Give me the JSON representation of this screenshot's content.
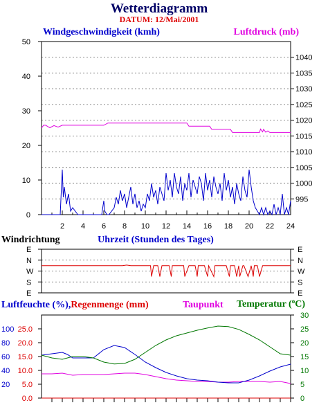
{
  "title": "Wetterdiagramm",
  "subtitle": "DATUM: 12/Mai/2001",
  "colors": {
    "wind": "#0000cc",
    "pressure": "#e000e0",
    "direction": "#dd0000",
    "humidity": "#0000cc",
    "rain": "#dd0000",
    "dewpoint": "#e000e0",
    "temperature": "#007700",
    "title": "#000066",
    "date": "#dd0000"
  },
  "chart_data": [
    {
      "type": "line",
      "left_axis_label": "Windgeschwindigkeit (kmh)",
      "right_axis_label": "Luftdruck (mb)",
      "xlabel": "Uhrzeit (Stunden des Tages)",
      "x_ticks": [
        2,
        4,
        6,
        8,
        10,
        12,
        14,
        16,
        18,
        20,
        22,
        24
      ],
      "xlim": [
        0,
        24
      ],
      "left_ylim": [
        0,
        50
      ],
      "left_ticks": [
        0,
        10,
        20,
        30,
        40,
        50
      ],
      "right_ylim": [
        990,
        1045
      ],
      "right_ticks": [
        995,
        1000,
        1005,
        1010,
        1015,
        1020,
        1025,
        1030,
        1035,
        1040
      ],
      "grid": true,
      "series": [
        {
          "name": "Windgeschwindigkeit (kmh)",
          "axis": "left",
          "x": [
            0,
            1.8,
            2.0,
            2.1,
            2.2,
            2.4,
            2.6,
            2.8,
            3.0,
            3.5,
            5.0,
            5.8,
            6.0,
            6.1,
            6.3,
            6.5,
            7.0,
            7.2,
            7.4,
            7.6,
            7.8,
            8.0,
            8.2,
            8.4,
            8.6,
            8.8,
            9.0,
            9.2,
            9.4,
            9.6,
            9.8,
            10.0,
            10.2,
            10.4,
            10.6,
            10.8,
            11.0,
            11.2,
            11.4,
            11.6,
            11.8,
            12.0,
            12.2,
            12.4,
            12.6,
            12.8,
            13.0,
            13.2,
            13.4,
            13.6,
            13.8,
            14.0,
            14.2,
            14.4,
            14.6,
            14.8,
            15.0,
            15.2,
            15.4,
            15.6,
            15.8,
            16.0,
            16.2,
            16.4,
            16.6,
            16.8,
            17.0,
            17.2,
            17.4,
            17.6,
            17.8,
            18.0,
            18.2,
            18.4,
            18.6,
            18.8,
            19.0,
            19.2,
            19.4,
            19.6,
            19.8,
            20.0,
            20.2,
            20.4,
            20.6,
            20.8,
            21.0,
            21.2,
            21.4,
            21.6,
            21.8,
            22.0,
            22.2,
            22.4,
            22.6,
            22.8,
            23.0,
            23.2,
            23.4,
            23.6,
            23.8,
            24.0
          ],
          "values": [
            0,
            0,
            13,
            5,
            8,
            3,
            6,
            1,
            2,
            0,
            0,
            0,
            4,
            1,
            0,
            0,
            2,
            5,
            3,
            7,
            4,
            6,
            2,
            5,
            8,
            3,
            6,
            2,
            4,
            1,
            3,
            2,
            6,
            4,
            9,
            5,
            7,
            3,
            8,
            6,
            4,
            12,
            7,
            10,
            5,
            12,
            8,
            6,
            11,
            4,
            9,
            7,
            12,
            5,
            10,
            8,
            6,
            11,
            9,
            4,
            12,
            7,
            10,
            5,
            11,
            8,
            6,
            9,
            4,
            12,
            7,
            10,
            5,
            8,
            3,
            9,
            6,
            4,
            11,
            7,
            5,
            13,
            8,
            4,
            2,
            1,
            0,
            2,
            0,
            2,
            0,
            1,
            0,
            3,
            0,
            2,
            0,
            6,
            0,
            2,
            0,
            4
          ]
        },
        {
          "name": "Luftdruck (mb)",
          "axis": "right",
          "x": [
            0,
            0.2,
            0.4,
            0.8,
            1.2,
            1.6,
            2.0,
            6.0,
            6.4,
            6.8,
            14.0,
            14.2,
            16.2,
            16.4,
            18.2,
            18.4,
            21.0,
            21.1,
            21.3,
            21.4,
            21.6,
            21.8,
            22.0,
            24.0
          ],
          "values": [
            1017.5,
            1018.4,
            1018.4,
            1017.6,
            1018.3,
            1017.8,
            1018.4,
            1018.4,
            1019.1,
            1019.1,
            1019.1,
            1018.1,
            1018.1,
            1017.1,
            1017.1,
            1016.1,
            1016.1,
            1017.2,
            1016.3,
            1017.1,
            1016.2,
            1016.6,
            1016.1,
            1016.1
          ]
        }
      ]
    },
    {
      "type": "line",
      "title": "Windrichtung",
      "categories": [
        "E",
        "N",
        "W",
        "S",
        "E"
      ],
      "xlim": [
        0,
        24
      ],
      "grid": true,
      "series": [
        {
          "name": "Windrichtung",
          "x": [
            0,
            2.2,
            2.4,
            2.7,
            7.0,
            7.4,
            7.8,
            8.2,
            8.6,
            9.0,
            9.2,
            9.5,
            9.8,
            10.0,
            10.2,
            10.5,
            10.6,
            10.8,
            10.9,
            11.2,
            11.4,
            11.6,
            11.7,
            11.9,
            12.3,
            12.5,
            12.6,
            13.0,
            13.5,
            13.7,
            13.8,
            14.2,
            14.8,
            15.0,
            15.1,
            15.4,
            15.7,
            16.0,
            16.1,
            16.6,
            16.7,
            17.0,
            17.3,
            17.6,
            17.8,
            18.1,
            18.2,
            18.6,
            18.8,
            19.0,
            19.1,
            19.4,
            19.5,
            19.9,
            20.2,
            20.4,
            20.5,
            20.8,
            21.0,
            21.3,
            21.5,
            22.0,
            24.0
          ],
          "values_deg": [
            0,
            0,
            0,
            0,
            0,
            0,
            0,
            5,
            0,
            0,
            0,
            0,
            360,
            0,
            0,
            0,
            270,
            0,
            0,
            0,
            270,
            0,
            0,
            0,
            0,
            270,
            0,
            0,
            0,
            0,
            270,
            0,
            0,
            270,
            0,
            0,
            0,
            270,
            0,
            270,
            0,
            0,
            0,
            0,
            0,
            270,
            0,
            0,
            270,
            0,
            270,
            0,
            0,
            270,
            0,
            270,
            0,
            0,
            270,
            0,
            0,
            0,
            0
          ]
        }
      ]
    },
    {
      "type": "line",
      "left_axis_label": "Luftfeuchte (%)",
      "left_axis_label_2": "Regenmenge (mm)",
      "dewpoint_label": "Taupunkt",
      "right_axis_label": "Temperatur (°C)",
      "xlim": [
        0,
        24
      ],
      "humidity_ticks": [
        20,
        40,
        60,
        80,
        100
      ],
      "rain_ticks": [
        "0.0",
        "5.0",
        "10.0",
        "15.0",
        "20.0",
        "25.0"
      ],
      "left_ylim": [
        0,
        120
      ],
      "right_ylim": [
        0,
        30
      ],
      "right_ticks": [
        0,
        5,
        10,
        15,
        20,
        25,
        30
      ],
      "grid": false,
      "series": [
        {
          "name": "Luftfeuchte (%)",
          "axis": "left",
          "x": [
            0,
            1,
            2,
            2.5,
            3,
            4,
            5,
            6,
            7,
            8,
            9,
            10,
            11,
            12,
            13,
            14,
            15,
            16,
            17,
            18,
            19,
            20,
            21,
            22,
            23,
            24
          ],
          "values": [
            62,
            64,
            66,
            63,
            58,
            58,
            58,
            70,
            76,
            73,
            63,
            52,
            44,
            37,
            32,
            28,
            26,
            25,
            23,
            22,
            22,
            26,
            32,
            39,
            45,
            49
          ]
        },
        {
          "name": "Temperatur (°C)",
          "axis": "right",
          "x": [
            0,
            1,
            2,
            3,
            4,
            5,
            6,
            7,
            8,
            9,
            10,
            11,
            12,
            13,
            14,
            15,
            16,
            17,
            18,
            19,
            20,
            21,
            22,
            23,
            24
          ],
          "values": [
            15.5,
            14.5,
            14.0,
            15.0,
            15.0,
            14.5,
            13.0,
            12.3,
            12.5,
            14.0,
            16.5,
            19.0,
            21.0,
            22.5,
            23.5,
            24.5,
            25.3,
            26.0,
            25.8,
            24.8,
            23.0,
            21.0,
            18.5,
            16.0,
            15.5
          ]
        },
        {
          "name": "Taupunkt",
          "axis": "left",
          "x": [
            0,
            1,
            2,
            3,
            4,
            5,
            6,
            7,
            8,
            9,
            10,
            11,
            12,
            13,
            14,
            15,
            16,
            17,
            18,
            19,
            20,
            21,
            22,
            23,
            24
          ],
          "values": [
            35,
            35,
            36,
            33,
            34,
            34,
            34,
            35,
            36,
            36,
            34,
            31,
            28,
            26,
            25,
            24,
            24,
            23,
            23,
            24,
            24,
            24,
            23,
            24,
            21
          ]
        },
        {
          "name": "Regenmenge (mm)",
          "axis": "left",
          "x": [
            0,
            24
          ],
          "values": [
            0,
            0
          ]
        }
      ]
    }
  ]
}
